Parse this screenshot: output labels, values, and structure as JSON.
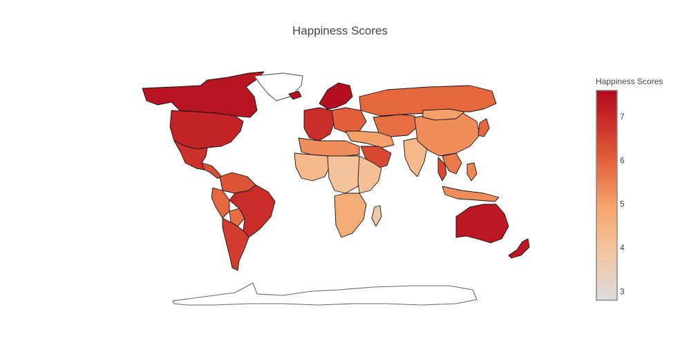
{
  "chart_data": {
    "type": "choropleth",
    "title": "Happiness Scores",
    "colorbar": {
      "title": "Happiness Scores",
      "range": [
        2.8,
        7.6
      ],
      "ticks": [
        3,
        4,
        5,
        6,
        7
      ],
      "tick_labels": [
        "3",
        "4",
        "5",
        "6",
        "7"
      ],
      "colorscale": [
        [
          0.0,
          "#dcdcdc"
        ],
        [
          0.25,
          "#f5c39b"
        ],
        [
          0.45,
          "#f4a46a"
        ],
        [
          0.65,
          "#e5663c"
        ],
        [
          0.8,
          "#d03a2e"
        ],
        [
          1.0,
          "#b2091e"
        ]
      ]
    },
    "regions": [
      {
        "name": "Canada",
        "value": 7.4
      },
      {
        "name": "USA",
        "value": 7.1
      },
      {
        "name": "Mexico",
        "value": 6.8
      },
      {
        "name": "Central America",
        "value": 6.3
      },
      {
        "name": "Colombia & Venezuela",
        "value": 6.2
      },
      {
        "name": "Peru & Ecuador",
        "value": 5.9
      },
      {
        "name": "Bolivia",
        "value": 5.8
      },
      {
        "name": "Brazil",
        "value": 6.9
      },
      {
        "name": "Argentina & Chile",
        "value": 6.6
      },
      {
        "name": "Greenland",
        "value": null
      },
      {
        "name": "Iceland",
        "value": 7.5
      },
      {
        "name": "Scandinavia",
        "value": 7.5
      },
      {
        "name": "Western Europe",
        "value": 6.9
      },
      {
        "name": "Eastern Europe",
        "value": 6.0
      },
      {
        "name": "Russia",
        "value": 5.9
      },
      {
        "name": "Kazakhstan & Central Asia",
        "value": 5.8
      },
      {
        "name": "Middle East",
        "value": 5.0
      },
      {
        "name": "Saudi Arabia",
        "value": 6.4
      },
      {
        "name": "North Africa",
        "value": 5.3
      },
      {
        "name": "West Africa",
        "value": 4.3
      },
      {
        "name": "Central Africa",
        "value": 4.0
      },
      {
        "name": "East Africa",
        "value": 4.1
      },
      {
        "name": "Southern Africa",
        "value": 4.7
      },
      {
        "name": "Madagascar",
        "value": 3.7
      },
      {
        "name": "India",
        "value": 4.3
      },
      {
        "name": "China",
        "value": 5.3
      },
      {
        "name": "Mongolia",
        "value": 5.0
      },
      {
        "name": "Southeast Asia",
        "value": 5.6
      },
      {
        "name": "Thailand",
        "value": 6.4
      },
      {
        "name": "Indonesia",
        "value": 5.3
      },
      {
        "name": "Philippines",
        "value": 5.4
      },
      {
        "name": "Japan",
        "value": 5.9
      },
      {
        "name": "Australia",
        "value": 7.3
      },
      {
        "name": "New Zealand",
        "value": 7.3
      }
    ]
  }
}
